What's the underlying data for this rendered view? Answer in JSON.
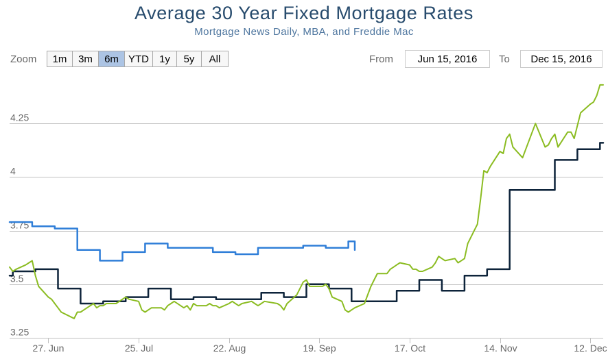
{
  "header": {
    "title": "Average 30 Year Fixed Mortgage Rates",
    "subtitle": "Mortgage News Daily, MBA, and Freddie Mac"
  },
  "range_selector": {
    "zoom_label": "Zoom",
    "buttons": [
      "1m",
      "3m",
      "6m",
      "YTD",
      "1y",
      "5y",
      "All"
    ],
    "selected": "6m",
    "from_label": "From",
    "from_value": "Jun 15, 2016",
    "to_label": "To",
    "to_value": "Dec 15, 2016"
  },
  "chart_data": {
    "type": "line",
    "title": "Average 30 Year Fixed Mortgage Rates",
    "subtitle": "Mortgage News Daily, MBA, and Freddie Mac",
    "x_range": [
      "2016-06-15",
      "2016-12-16"
    ],
    "ylim": [
      3.25,
      4.5
    ],
    "y_ticks": [
      3.25,
      3.5,
      3.75,
      4,
      4.25
    ],
    "y_tick_labels": [
      "3.25",
      "3.5",
      "3.75",
      "4",
      "4.25"
    ],
    "x_ticks": [
      "2016-06-27",
      "2016-07-25",
      "2016-08-22",
      "2016-09-19",
      "2016-10-17",
      "2016-11-14",
      "2016-12-12"
    ],
    "x_tick_labels": [
      "27. Jun",
      "25. Jul",
      "22. Aug",
      "19. Sep",
      "17. Oct",
      "14. Nov",
      "12. Dec"
    ],
    "grid": true,
    "colors": {
      "green": "#8bbc21",
      "navy": "#0d233a",
      "blue": "#2f7ed8",
      "grid": "#c0c0c0"
    },
    "series": [
      {
        "color": "#2f7ed8",
        "step": true,
        "x": [
          "2016-06-15",
          "2016-06-22",
          "2016-06-29",
          "2016-07-06",
          "2016-07-13",
          "2016-07-20",
          "2016-07-27",
          "2016-08-03",
          "2016-08-10",
          "2016-08-17",
          "2016-08-24",
          "2016-08-31",
          "2016-09-07",
          "2016-09-14",
          "2016-09-21",
          "2016-09-28",
          "2016-09-30"
        ],
        "y": [
          3.79,
          3.77,
          3.76,
          3.66,
          3.61,
          3.65,
          3.69,
          3.67,
          3.67,
          3.65,
          3.64,
          3.67,
          3.67,
          3.68,
          3.67,
          3.7,
          3.66
        ]
      },
      {
        "color": "#0d233a",
        "step": true,
        "x": [
          "2016-06-15",
          "2016-06-16",
          "2016-06-23",
          "2016-06-30",
          "2016-07-07",
          "2016-07-14",
          "2016-07-21",
          "2016-07-28",
          "2016-08-04",
          "2016-08-11",
          "2016-08-18",
          "2016-08-25",
          "2016-09-01",
          "2016-09-08",
          "2016-09-15",
          "2016-09-22",
          "2016-09-29",
          "2016-10-06",
          "2016-10-13",
          "2016-10-20",
          "2016-10-27",
          "2016-11-03",
          "2016-11-10",
          "2016-11-17",
          "2016-11-24",
          "2016-12-01",
          "2016-12-08",
          "2016-12-15",
          "2016-12-16"
        ],
        "y": [
          3.54,
          3.56,
          3.57,
          3.48,
          3.41,
          3.42,
          3.44,
          3.48,
          3.43,
          3.44,
          3.43,
          3.43,
          3.46,
          3.44,
          3.5,
          3.48,
          3.42,
          3.42,
          3.47,
          3.52,
          3.47,
          3.54,
          3.57,
          3.94,
          3.94,
          4.08,
          4.13,
          4.16,
          4.16
        ]
      },
      {
        "color": "#8bbc21",
        "step": false,
        "x": [
          "2016-06-15",
          "2016-06-16",
          "2016-06-17",
          "2016-06-20",
          "2016-06-21",
          "2016-06-22",
          "2016-06-23",
          "2016-06-24",
          "2016-06-27",
          "2016-06-28",
          "2016-06-29",
          "2016-06-30",
          "2016-07-01",
          "2016-07-05",
          "2016-07-06",
          "2016-07-07",
          "2016-07-08",
          "2016-07-11",
          "2016-07-12",
          "2016-07-13",
          "2016-07-14",
          "2016-07-15",
          "2016-07-18",
          "2016-07-19",
          "2016-07-20",
          "2016-07-21",
          "2016-07-22",
          "2016-07-25",
          "2016-07-26",
          "2016-07-27",
          "2016-07-28",
          "2016-07-29",
          "2016-08-01",
          "2016-08-02",
          "2016-08-03",
          "2016-08-04",
          "2016-08-05",
          "2016-08-08",
          "2016-08-09",
          "2016-08-10",
          "2016-08-11",
          "2016-08-12",
          "2016-08-15",
          "2016-08-16",
          "2016-08-17",
          "2016-08-18",
          "2016-08-19",
          "2016-08-22",
          "2016-08-23",
          "2016-08-24",
          "2016-08-25",
          "2016-08-26",
          "2016-08-29",
          "2016-08-30",
          "2016-08-31",
          "2016-09-01",
          "2016-09-02",
          "2016-09-06",
          "2016-09-07",
          "2016-09-08",
          "2016-09-09",
          "2016-09-12",
          "2016-09-13",
          "2016-09-14",
          "2016-09-15",
          "2016-09-16",
          "2016-09-19",
          "2016-09-20",
          "2016-09-21",
          "2016-09-22",
          "2016-09-23",
          "2016-09-26",
          "2016-09-27",
          "2016-09-28",
          "2016-09-29",
          "2016-09-30",
          "2016-10-03",
          "2016-10-04",
          "2016-10-05",
          "2016-10-06",
          "2016-10-07",
          "2016-10-10",
          "2016-10-11",
          "2016-10-12",
          "2016-10-13",
          "2016-10-14",
          "2016-10-17",
          "2016-10-18",
          "2016-10-19",
          "2016-10-20",
          "2016-10-21",
          "2016-10-24",
          "2016-10-25",
          "2016-10-26",
          "2016-10-27",
          "2016-10-28",
          "2016-10-31",
          "2016-11-01",
          "2016-11-02",
          "2016-11-03",
          "2016-11-04",
          "2016-11-07",
          "2016-11-08",
          "2016-11-09",
          "2016-11-10",
          "2016-11-11",
          "2016-11-14",
          "2016-11-15",
          "2016-11-16",
          "2016-11-17",
          "2016-11-18",
          "2016-11-21",
          "2016-11-22",
          "2016-11-23",
          "2016-11-25",
          "2016-11-28",
          "2016-11-29",
          "2016-11-30",
          "2016-12-01",
          "2016-12-02",
          "2016-12-05",
          "2016-12-06",
          "2016-12-07",
          "2016-12-08",
          "2016-12-09",
          "2016-12-12",
          "2016-12-13",
          "2016-12-14",
          "2016-12-15",
          "2016-12-16"
        ],
        "y": [
          3.58,
          3.56,
          3.57,
          3.59,
          3.6,
          3.61,
          3.54,
          3.49,
          3.44,
          3.43,
          3.41,
          3.39,
          3.37,
          3.34,
          3.37,
          3.37,
          3.38,
          3.41,
          3.39,
          3.4,
          3.4,
          3.41,
          3.41,
          3.42,
          3.43,
          3.44,
          3.43,
          3.42,
          3.38,
          3.37,
          3.38,
          3.39,
          3.39,
          3.38,
          3.4,
          3.41,
          3.42,
          3.39,
          3.4,
          3.38,
          3.41,
          3.4,
          3.4,
          3.41,
          3.4,
          3.4,
          3.39,
          3.41,
          3.42,
          3.41,
          3.4,
          3.41,
          3.42,
          3.41,
          3.4,
          3.41,
          3.42,
          3.41,
          3.4,
          3.38,
          3.41,
          3.45,
          3.48,
          3.51,
          3.52,
          3.49,
          3.49,
          3.49,
          3.5,
          3.48,
          3.44,
          3.42,
          3.38,
          3.37,
          3.38,
          3.39,
          3.41,
          3.45,
          3.49,
          3.52,
          3.55,
          3.55,
          3.57,
          3.58,
          3.59,
          3.6,
          3.59,
          3.57,
          3.57,
          3.56,
          3.56,
          3.58,
          3.6,
          3.63,
          3.62,
          3.61,
          3.62,
          3.6,
          3.61,
          3.62,
          3.69,
          3.78,
          3.9,
          4.03,
          4.02,
          4.05,
          4.12,
          4.11,
          4.18,
          4.2,
          4.14,
          4.09,
          4.13,
          4.17,
          4.25,
          4.14,
          4.15,
          4.18,
          4.2,
          4.14,
          4.21,
          4.21,
          4.18,
          4.24,
          4.3,
          4.34,
          4.35,
          4.38,
          4.43,
          4.43
        ]
      }
    ]
  }
}
